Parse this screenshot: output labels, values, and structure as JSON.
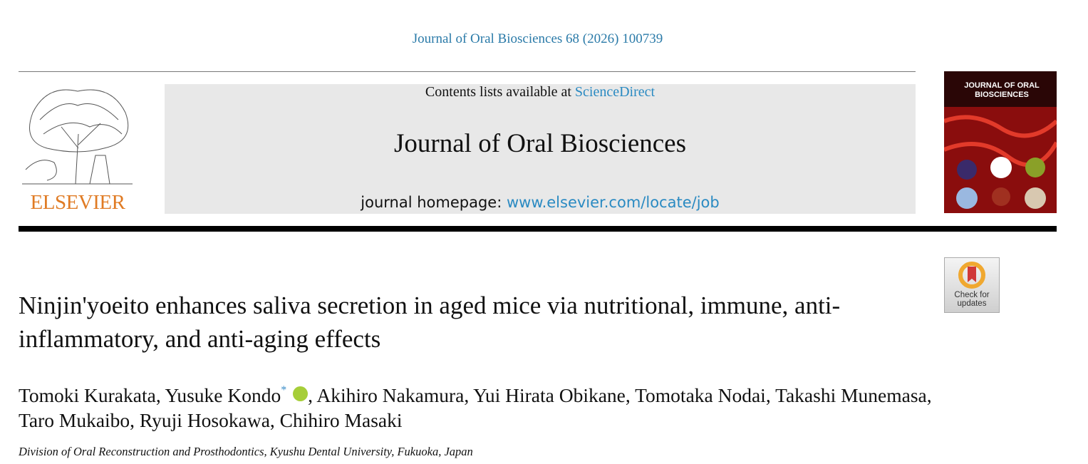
{
  "header": {
    "citation": "Journal of Oral Biosciences 68 (2026) 100739",
    "contents_prefix": "Contents lists available at",
    "contents_link": "ScienceDirect",
    "journal_title": "Journal of Oral Biosciences",
    "homepage_label": "journal homepage:",
    "homepage_link": "www.elsevier.com/locate/job",
    "publisher": "ELSEVIER",
    "cover_title": "JOURNAL OF ORAL BIOSCIENCES",
    "update_badge": "Check for updates"
  },
  "article": {
    "title": "Ninjin'yoeito enhances saliva secretion in aged mice via nutritional, immune, anti-inflammatory, and anti-aging effects",
    "separator": ",",
    "authors": [
      {
        "name": "Tomoki Kurakata"
      },
      {
        "name": "Yusuke Kondo",
        "mark": "*",
        "orcid": true
      },
      {
        "name": "Akihiro Nakamura"
      },
      {
        "name": "Yui Hirata Obikane"
      },
      {
        "name": "Tomotaka Nodai"
      },
      {
        "name": "Takashi Munemasa"
      },
      {
        "name": "Taro Mukaibo"
      },
      {
        "name": "Ryuji Hosokawa"
      },
      {
        "name": "Chihiro Masaki"
      }
    ],
    "affiliation": "Division of Oral Reconstruction and Prosthodontics, Kyushu Dental University, Fukuoka, Japan"
  }
}
